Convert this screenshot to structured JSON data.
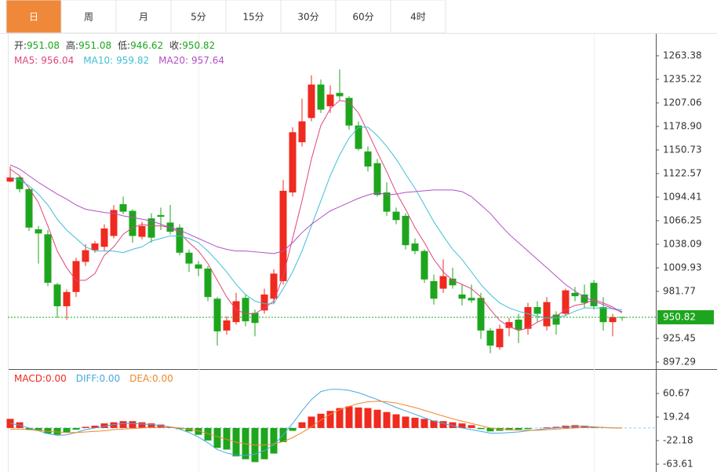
{
  "tabs": [
    "日",
    "周",
    "月",
    "5分",
    "15分",
    "30分",
    "60分",
    "4时"
  ],
  "active_tab": 0,
  "chart_data": [
    {
      "type": "candlestick",
      "ohlc_labels": [
        "开:",
        "高:",
        "低:",
        "收:"
      ],
      "up_color": "#ef2a1f",
      "down_color": "#1da61d",
      "open": [
        1113,
        1118,
        1104,
        1056,
        1050,
        990,
        964,
        981,
        1017,
        1031,
        1035,
        1048,
        1086,
        1078,
        1047,
        1069,
        1073,
        1064,
        1058,
        1028,
        1014,
        1009,
        973,
        935,
        945,
        974,
        956,
        959,
        973,
        994,
        1100,
        1160,
        1189,
        1229,
        1203,
        1219,
        1213,
        1180,
        1149,
        1135,
        1100,
        1077,
        1072,
        1039,
        1030,
        994,
        985,
        997,
        978,
        974,
        974,
        935,
        915,
        938,
        948,
        937,
        963,
        940,
        954,
        955,
        980,
        978,
        992,
        963,
        945,
        951.08
      ],
      "high": [
        1131,
        1120,
        1106,
        1060,
        1055,
        992,
        984,
        1022,
        1038,
        1042,
        1062,
        1085,
        1095,
        1080,
        1065,
        1075,
        1082,
        1085,
        1062,
        1032,
        1018,
        1012,
        975,
        952,
        980,
        978,
        960,
        985,
        1008,
        1115,
        1178,
        1212,
        1240,
        1235,
        1228,
        1247,
        1215,
        1185,
        1155,
        1140,
        1112,
        1082,
        1075,
        1045,
        1032,
        1002,
        1020,
        1010,
        990,
        990,
        980,
        938,
        942,
        950,
        955,
        968,
        970,
        975,
        958,
        985,
        987,
        990,
        995,
        975,
        955,
        951.08
      ],
      "low": [
        1112,
        1100,
        1054,
        1015,
        988,
        950,
        948,
        975,
        1012,
        1028,
        1030,
        1045,
        1074,
        1040,
        1044,
        1040,
        1055,
        1050,
        1025,
        1005,
        1000,
        970,
        917,
        930,
        942,
        940,
        928,
        955,
        968,
        990,
        1095,
        1155,
        1185,
        1195,
        1195,
        1210,
        1175,
        1150,
        1125,
        1095,
        1072,
        1062,
        1032,
        1026,
        992,
        966,
        980,
        985,
        965,
        968,
        925,
        908,
        912,
        928,
        920,
        930,
        945,
        935,
        930,
        952,
        970,
        962,
        960,
        935,
        928,
        946.62
      ],
      "close": [
        1118,
        1104,
        1058,
        1051,
        992,
        964,
        981,
        1018,
        1031,
        1039,
        1057,
        1079,
        1077,
        1048,
        1060,
        1046,
        1071,
        1053,
        1028,
        1015,
        1009,
        975,
        934,
        947,
        970,
        946,
        944,
        978,
        1003,
        1102,
        1172,
        1185,
        1229,
        1199,
        1217,
        1215,
        1180,
        1152,
        1131,
        1097,
        1077,
        1067,
        1037,
        1030,
        996,
        973,
        1000,
        989,
        973,
        971,
        935,
        917,
        937,
        945,
        936,
        963,
        955,
        969,
        942,
        983,
        976,
        968,
        964,
        945,
        951,
        950.82
      ],
      "series": [
        {
          "name": "MA5:",
          "color": "#e0457b",
          "values": [
            1128,
            1120,
            1105,
            1088,
            1060,
            1030,
            1010,
            995,
            995,
            1003,
            1025,
            1035,
            1050,
            1058,
            1062,
            1060,
            1060,
            1058,
            1052,
            1040,
            1030,
            1015,
            995,
            975,
            960,
            955,
            955,
            962,
            970,
            1000,
            1045,
            1090,
            1140,
            1180,
            1200,
            1210,
            1208,
            1195,
            1172,
            1148,
            1125,
            1100,
            1080,
            1058,
            1040,
            1020,
            1005,
            995,
            990,
            985,
            975,
            960,
            947,
            940,
            935,
            938,
            945,
            950,
            952,
            960,
            965,
            967,
            972,
            968,
            963,
            956.04
          ]
        },
        {
          "name": "MA10:",
          "color": "#3fbfd8",
          "values": [
            1118,
            1115,
            1108,
            1098,
            1085,
            1068,
            1055,
            1045,
            1035,
            1030,
            1030,
            1030,
            1028,
            1032,
            1035,
            1042,
            1045,
            1048,
            1048,
            1045,
            1040,
            1030,
            1018,
            1005,
            990,
            978,
            970,
            967,
            967,
            985,
            1005,
            1030,
            1060,
            1090,
            1120,
            1145,
            1165,
            1178,
            1178,
            1168,
            1155,
            1140,
            1122,
            1105,
            1085,
            1065,
            1048,
            1032,
            1020,
            1005,
            990,
            978,
            968,
            962,
            958,
            955,
            952,
            950,
            950,
            953,
            958,
            962,
            962,
            962,
            961,
            959.82
          ]
        },
        {
          "name": "MA20:",
          "color": "#b44fc6",
          "values": [
            1133,
            1128,
            1120,
            1112,
            1105,
            1098,
            1092,
            1085,
            1080,
            1078,
            1076,
            1075,
            1072,
            1070,
            1068,
            1066,
            1062,
            1058,
            1055,
            1050,
            1045,
            1040,
            1035,
            1032,
            1030,
            1030,
            1029,
            1028,
            1027,
            1030,
            1040,
            1052,
            1062,
            1070,
            1078,
            1083,
            1088,
            1093,
            1097,
            1100,
            1097,
            1098,
            1100,
            1101,
            1102,
            1103,
            1103,
            1103,
            1101,
            1095,
            1085,
            1075,
            1062,
            1050,
            1040,
            1030,
            1020,
            1010,
            1000,
            990,
            982,
            975,
            970,
            966,
            961,
            957.64
          ]
        }
      ],
      "ylim": [
        890.72,
        1283.09
      ],
      "yticks": [
        1263.38,
        1235.22,
        1207.06,
        {
          "value": 1178.9,
          "label": "1178.90"
        },
        1150.73,
        1122.57,
        1094.41,
        1066.25,
        1038.09,
        1009.93,
        981.77,
        925.45,
        897.29
      ],
      "price_tag_color": "#1da61d"
    },
    {
      "type": "macd",
      "up_color": "#ef2a1f",
      "down_color": "#1da61d",
      "series": [
        {
          "name": "MACD:",
          "color": "#ef2a1f",
          "style": "bar",
          "current_label": "0.00",
          "values": [
            16,
            10,
            -3,
            -5,
            -10,
            -12,
            -8,
            -3,
            2,
            4,
            8,
            10,
            12,
            12,
            10,
            8,
            6,
            2,
            -2,
            -6,
            -12,
            -22,
            -35,
            -38,
            -50,
            -55,
            -60,
            -55,
            -45,
            -25,
            -5,
            10,
            20,
            25,
            30,
            35,
            38,
            36,
            35,
            32,
            28,
            24,
            20,
            18,
            16,
            13,
            12,
            10,
            8,
            5,
            -2,
            -6,
            -5,
            -4,
            -3,
            -2,
            0,
            1,
            2,
            4,
            5,
            4,
            2,
            0,
            0,
            0
          ]
        },
        {
          "name": "DIFF:",
          "color": "#4aa8e0",
          "style": "line",
          "current_label": "0.00",
          "values": [
            8,
            5,
            0,
            -5,
            -10,
            -13,
            -12,
            -8,
            -3,
            0,
            3,
            6,
            8,
            8,
            7,
            6,
            4,
            2,
            -2,
            -8,
            -16,
            -26,
            -38,
            -44,
            -48,
            -48,
            -46,
            -40,
            -30,
            -12,
            8,
            30,
            50,
            64,
            68,
            68,
            66,
            62,
            56,
            50,
            43,
            36,
            30,
            24,
            18,
            12,
            8,
            4,
            0,
            -3,
            -6,
            -9,
            -9,
            -8,
            -7,
            -5,
            -3,
            -1,
            0,
            2,
            3,
            3,
            2,
            1,
            0,
            0
          ]
        },
        {
          "name": "DEA:",
          "color": "#f0882c",
          "style": "line",
          "current_label": "0.00",
          "values": [
            -2,
            -2,
            -3,
            -4,
            -6,
            -7,
            -8,
            -8,
            -7,
            -6,
            -5,
            -3,
            -2,
            -1,
            0,
            1,
            1,
            1,
            0,
            -2,
            -5,
            -10,
            -15,
            -20,
            -25,
            -28,
            -30,
            -30,
            -28,
            -24,
            -17,
            -8,
            2,
            14,
            24,
            32,
            38,
            43,
            46,
            47,
            46,
            44,
            40,
            36,
            31,
            26,
            21,
            16,
            12,
            8,
            4,
            0,
            -2,
            -3,
            -4,
            -4,
            -4,
            -3,
            -2,
            -1,
            0,
            1,
            1,
            1,
            0,
            0
          ]
        }
      ],
      "ylim": [
        -73.28,
        89.67
      ],
      "yticks": [
        60.67,
        19.24,
        -22.18,
        -63.61
      ]
    }
  ]
}
